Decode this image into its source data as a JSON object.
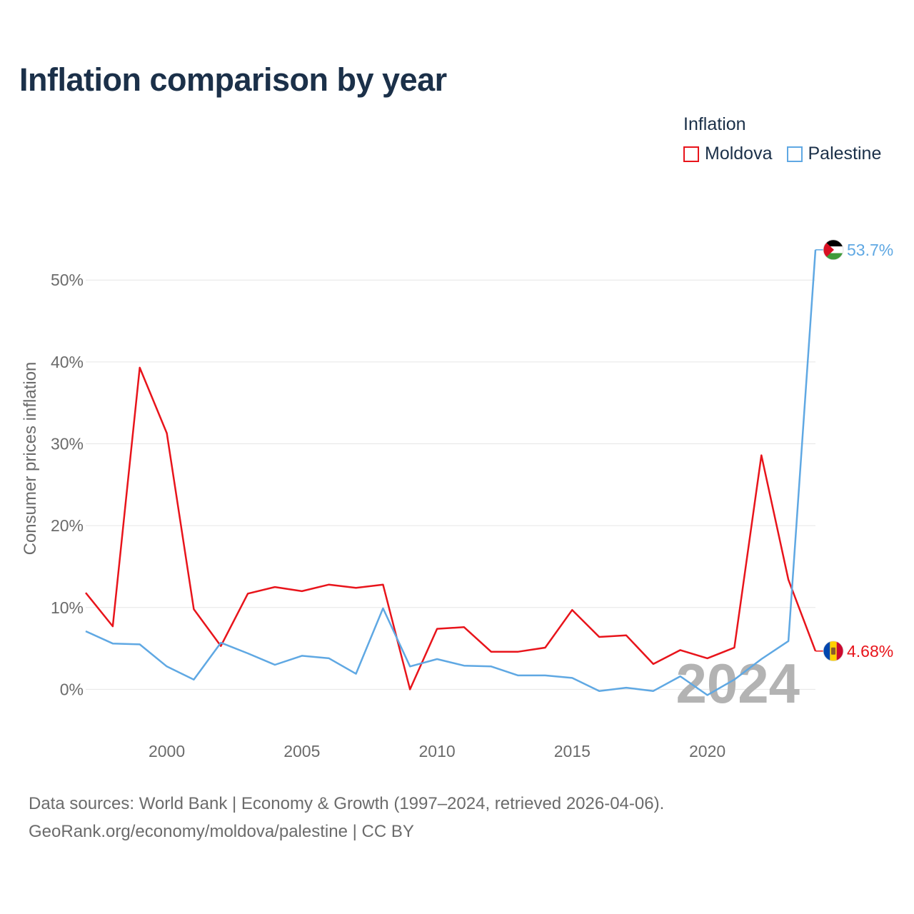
{
  "title": "Inflation comparison by year",
  "legend": {
    "title": "Inflation",
    "items": [
      {
        "label": "Moldova",
        "color": "#e8141b"
      },
      {
        "label": "Palestine",
        "color": "#5fa8e3"
      }
    ]
  },
  "source": {
    "line1": "Data sources: World Bank | Economy & Growth (1997–2024, retrieved 2026-04-06).",
    "line2": "GeoRank.org/economy/moldova/palestine | CC BY"
  },
  "chart_data": {
    "type": "line",
    "title": "Inflation comparison by year",
    "xlabel": "",
    "ylabel": "Consumer prices inflation",
    "xlim": [
      1997,
      2024
    ],
    "ylim": [
      -4.5,
      57
    ],
    "x": [
      1997,
      1998,
      1999,
      2000,
      2001,
      2002,
      2003,
      2004,
      2005,
      2006,
      2007,
      2008,
      2009,
      2010,
      2011,
      2012,
      2013,
      2014,
      2015,
      2016,
      2017,
      2018,
      2019,
      2020,
      2021,
      2022,
      2023,
      2024
    ],
    "xticks": [
      2000,
      2005,
      2010,
      2015,
      2020
    ],
    "xtick_labels": [
      "2000",
      "2005",
      "2010",
      "2015",
      "2020"
    ],
    "yticks": [
      0,
      10,
      20,
      30,
      40,
      50
    ],
    "ytick_labels": [
      "0%",
      "10%",
      "20%",
      "30%",
      "40%",
      "50%"
    ],
    "grid": true,
    "highlight_year": "2024",
    "series": [
      {
        "name": "Moldova",
        "color": "#e8141b",
        "end_label": "4.68%",
        "flag": "moldova-flag-icon",
        "values": [
          11.8,
          7.7,
          39.3,
          31.3,
          9.8,
          5.3,
          11.7,
          12.5,
          12.0,
          12.8,
          12.4,
          12.8,
          0.0,
          7.4,
          7.6,
          4.6,
          4.6,
          5.1,
          9.7,
          6.4,
          6.6,
          3.1,
          4.8,
          3.8,
          5.1,
          28.6,
          13.4,
          4.68
        ]
      },
      {
        "name": "Palestine",
        "color": "#5fa8e3",
        "end_label": "53.7%",
        "flag": "palestine-flag-icon",
        "values": [
          7.1,
          5.6,
          5.5,
          2.8,
          1.2,
          5.7,
          4.4,
          3.0,
          4.1,
          3.8,
          1.9,
          9.9,
          2.8,
          3.7,
          2.9,
          2.8,
          1.7,
          1.7,
          1.4,
          -0.2,
          0.2,
          -0.2,
          1.6,
          -0.7,
          1.2,
          3.7,
          5.9,
          53.7
        ]
      }
    ]
  }
}
